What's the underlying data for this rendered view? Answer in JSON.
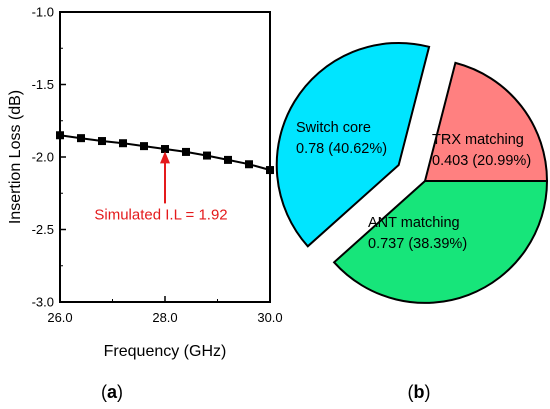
{
  "chart_data": [
    {
      "type": "line",
      "xlabel": "Frequency (GHz)",
      "ylabel": "Insertion Loss (dB)",
      "xlim": [
        26.0,
        30.0
      ],
      "ylim": [
        -3.0,
        -1.0
      ],
      "x_ticks": [
        "26.0",
        "28.0",
        "30.0"
      ],
      "y_ticks": [
        "-1.0",
        "-1.5",
        "-2.0",
        "-2.5",
        "-3.0"
      ],
      "x_tick_values": [
        26.0,
        28.0,
        30.0
      ],
      "y_tick_values": [
        -1.0,
        -1.5,
        -2.0,
        -2.5,
        -3.0
      ],
      "x": [
        26.0,
        26.4,
        26.8,
        27.2,
        27.6,
        28.0,
        28.4,
        28.8,
        29.2,
        29.6,
        30.0
      ],
      "y": [
        -1.85,
        -1.87,
        -1.89,
        -1.905,
        -1.925,
        -1.945,
        -1.965,
        -1.99,
        -2.02,
        -2.05,
        -2.09
      ],
      "marker": "square",
      "color": "#000000",
      "annotation": {
        "text": "Simulated I.L = 1.92",
        "x": 28.0,
        "y": -1.92,
        "color": "#e41a1c"
      },
      "panel_label": {
        "open": "(",
        "letter": "a",
        "close": ")"
      }
    },
    {
      "type": "pie",
      "slices": [
        {
          "name": "Switch core",
          "value": 0.78,
          "value_text": "0.78",
          "percent_text": "(40.62%)",
          "color": "#00e5ff",
          "exploded": true
        },
        {
          "name": "TRX matching",
          "value": 0.403,
          "value_text": "0.403",
          "percent_text": "(20.99%)",
          "color": "#ff8080",
          "exploded": false
        },
        {
          "name": "ANT matching",
          "value": 0.737,
          "value_text": "0.737",
          "percent_text": "(38.39%)",
          "color": "#17e57a",
          "exploded": false
        }
      ],
      "panel_label": {
        "open": "(",
        "letter": "b",
        "close": ")"
      }
    }
  ]
}
